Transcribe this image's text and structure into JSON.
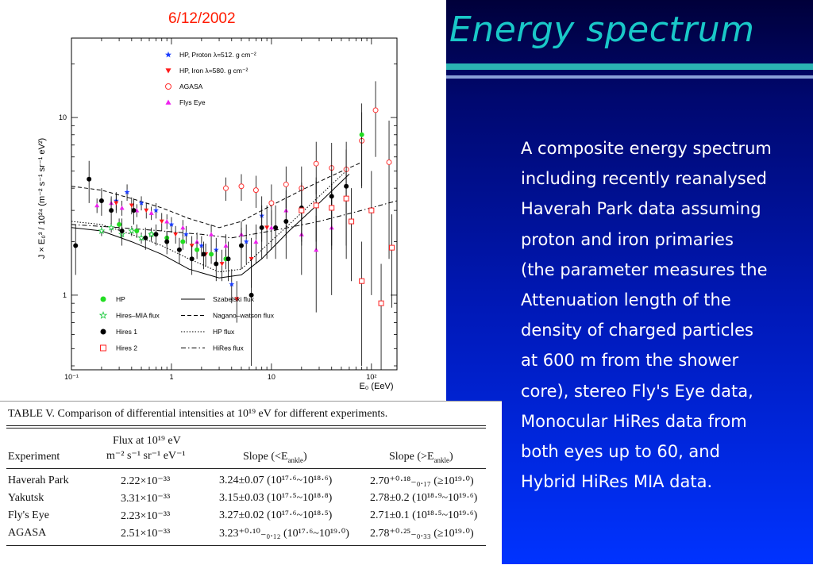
{
  "date": "6/12/2002",
  "slide_title": "Energy spectrum",
  "description_lines": [
    "A composite energy spectrum",
    "including recently reanalysed",
    "Haverah Park data assuming",
    "proton and iron primaries",
    "(the parameter measures the",
    "Attenuation length of the",
    "density of charged particles",
    "at 600 m from the shower",
    "core), stereo Fly's Eye data,",
    "Monocular HiRes data from",
    "both eyes up to 60, and",
    "Hybrid HiRes MIA data."
  ],
  "chart_data": {
    "type": "scatter",
    "xlabel": "E₀ (EeV)",
    "ylabel": "J × E₀³ / 10²⁴ (m⁻² s⁻¹ sr⁻¹ eV²)",
    "x_scale": "log",
    "y_scale": "log",
    "xlim": [
      0.1,
      180
    ],
    "ylim": [
      0.38,
      28
    ],
    "x_ticks": [
      {
        "value": 0.1,
        "label": "10⁻¹"
      },
      {
        "value": 1,
        "label": "1"
      },
      {
        "value": 10,
        "label": "10"
      },
      {
        "value": 100,
        "label": "10²"
      }
    ],
    "y_ticks": [
      {
        "value": 1,
        "label": "1"
      },
      {
        "value": 10,
        "label": "10"
      }
    ],
    "legend_top": [
      {
        "name": "HP, Proton   λ=512. g cm⁻²",
        "marker": "star",
        "color": "#1a3cff"
      },
      {
        "name": "HP, Iron   λ=580. g cm⁻²",
        "marker": "triangle-down",
        "color": "#ff1a1a"
      },
      {
        "name": "AGASA",
        "marker": "circle-open",
        "color": "#ff3333"
      },
      {
        "name": "Flys Eye",
        "marker": "triangle-up",
        "color": "#ee22ee"
      }
    ],
    "legend_bottom_markers": [
      {
        "name": "HP",
        "marker": "circle",
        "color": "#22dd22"
      },
      {
        "name": "Hires–MIA flux",
        "marker": "star-open",
        "color": "#22cc44"
      },
      {
        "name": "Hires 1",
        "marker": "circle",
        "color": "#000000"
      },
      {
        "name": "Hires 2",
        "marker": "square-open",
        "color": "#ff2222"
      }
    ],
    "legend_bottom_lines": [
      {
        "name": "Szabelski flux",
        "dash": "solid"
      },
      {
        "name": "Nagano–watson flux",
        "dash": "dashed"
      },
      {
        "name": "HP flux",
        "dash": "dotted"
      },
      {
        "name": "HiRes flux",
        "dash": "dashdot"
      }
    ],
    "series": [
      {
        "name": "HP, Proton   λ=512. g cm⁻²",
        "marker": "star",
        "color": "#1a3cff",
        "x": [
          0.28,
          0.36,
          0.5,
          0.7,
          1.0,
          1.4,
          2.0,
          2.8,
          4.0,
          5.6,
          8.0
        ],
        "y": [
          3.4,
          3.8,
          3.3,
          3.0,
          2.5,
          2.2,
          1.9,
          1.8,
          1.15,
          2.0,
          2.8
        ],
        "err": [
          0.4,
          0.4,
          0.3,
          0.3,
          0.25,
          0.25,
          0.25,
          0.3,
          0.25,
          0.5,
          0.8
        ]
      },
      {
        "name": "HP, Iron   λ=580. g cm⁻²",
        "marker": "triangle-down",
        "color": "#ff1a1a",
        "x": [
          0.28,
          0.4,
          0.56,
          0.8,
          1.1,
          1.6,
          2.2,
          3.2,
          4.5,
          6.3,
          9.0
        ],
        "y": [
          3.3,
          3.2,
          3.0,
          2.6,
          2.2,
          1.9,
          1.7,
          1.5,
          0.95,
          1.6,
          2.4
        ],
        "err": [
          0.4,
          0.35,
          0.3,
          0.3,
          0.25,
          0.25,
          0.25,
          0.3,
          0.25,
          0.5,
          0.8
        ]
      },
      {
        "name": "AGASA",
        "marker": "circle-open",
        "color": "#ff3333",
        "x": [
          3.5,
          5,
          7,
          10,
          14,
          20,
          28,
          40,
          56,
          80,
          110,
          150
        ],
        "y": [
          4.0,
          4.1,
          3.9,
          3.3,
          4.2,
          4.0,
          5.5,
          5.2,
          5.1,
          7.4,
          11.0,
          5.6
        ],
        "err": [
          0.6,
          0.7,
          0.8,
          0.9,
          1.1,
          1.3,
          1.8,
          2.0,
          2.2,
          3.3,
          5.0,
          4.0
        ]
      },
      {
        "name": "Flys Eye",
        "marker": "triangle-up",
        "color": "#ee22ee",
        "x": [
          0.18,
          0.25,
          0.32,
          0.45,
          0.63,
          0.9,
          1.3,
          1.8,
          2.5,
          3.5,
          5.0,
          7.0,
          10,
          14,
          20,
          28,
          40
        ],
        "y": [
          3.2,
          3.3,
          3.1,
          3.0,
          2.9,
          2.6,
          2.4,
          2.0,
          2.2,
          1.9,
          2.2,
          2.0,
          2.4,
          3.0,
          2.2,
          1.8,
          2.4
        ],
        "err": [
          0.3,
          0.3,
          0.3,
          0.25,
          0.25,
          0.25,
          0.25,
          0.25,
          0.3,
          0.3,
          0.4,
          0.5,
          0.6,
          0.9,
          0.9,
          1.0,
          1.4
        ]
      },
      {
        "name": "HP",
        "marker": "circle",
        "color": "#22dd22",
        "x": [
          0.3,
          0.45,
          0.63,
          0.9,
          1.3,
          1.8,
          2.5,
          3.5,
          80
        ],
        "y": [
          2.5,
          2.3,
          2.2,
          2.1,
          2.0,
          1.8,
          1.7,
          1.6,
          8.0
        ],
        "err": [
          0.2,
          0.2,
          0.2,
          0.2,
          0.2,
          0.2,
          0.2,
          0.2,
          4.0
        ]
      },
      {
        "name": "Hires–MIA flux",
        "marker": "star-open",
        "color": "#22cc44",
        "x": [
          0.2,
          0.25,
          0.32,
          0.4,
          0.5,
          0.63
        ],
        "y": [
          2.3,
          2.4,
          2.2,
          2.3,
          2.1,
          2.2
        ],
        "err": [
          0.15,
          0.15,
          0.15,
          0.15,
          0.15,
          0.15
        ]
      },
      {
        "name": "Hires 1",
        "marker": "circle",
        "color": "#000000",
        "x": [
          0.11,
          0.15,
          0.2,
          0.25,
          0.32,
          0.42,
          0.55,
          0.7,
          0.9,
          1.2,
          1.6,
          2.1,
          2.8,
          3.7,
          5,
          6.3,
          8,
          11,
          14,
          20,
          28,
          40,
          56
        ],
        "y": [
          1.9,
          4.5,
          3.4,
          3.0,
          2.3,
          3.0,
          2.1,
          2.2,
          2.0,
          1.8,
          1.6,
          1.7,
          1.5,
          1.6,
          1.9,
          1.0,
          2.4,
          2.4,
          2.6,
          3.1,
          3.2,
          3.6,
          4.1
        ],
        "err": [
          0.6,
          1.2,
          0.6,
          0.5,
          0.4,
          0.5,
          0.3,
          0.3,
          0.3,
          0.3,
          0.3,
          0.3,
          0.3,
          0.4,
          0.5,
          0.6,
          0.8,
          0.8,
          1.0,
          1.2,
          1.4,
          1.8,
          2.5
        ]
      },
      {
        "name": "Hires 2",
        "marker": "square-open",
        "color": "#ff2222",
        "x": [
          20,
          28,
          40,
          56,
          63,
          80,
          100,
          125,
          160
        ],
        "y": [
          3.0,
          3.2,
          3.1,
          3.5,
          2.6,
          1.2,
          3.0,
          0.9,
          1.85
        ],
        "err": [
          1.0,
          1.2,
          1.2,
          1.6,
          1.4,
          0.8,
          2.0,
          0.6,
          1.0
        ]
      }
    ],
    "curves": [
      {
        "name": "Szabelski flux",
        "dash": "solid",
        "x": [
          0.1,
          0.2,
          0.4,
          0.8,
          1.5,
          3,
          5,
          8,
          15,
          30,
          60
        ],
        "y": [
          2.4,
          2.3,
          2.0,
          1.7,
          1.4,
          1.25,
          1.3,
          1.6,
          2.3,
          3.3,
          4.8
        ]
      },
      {
        "name": "Nagano–watson flux",
        "dash": "dashed",
        "x": [
          0.1,
          0.2,
          0.4,
          0.8,
          1.5,
          3,
          5,
          10,
          20,
          40,
          80
        ],
        "y": [
          4.1,
          3.9,
          3.5,
          3.1,
          2.7,
          2.4,
          2.6,
          3.2,
          3.9,
          4.7,
          5.6
        ]
      },
      {
        "name": "HP flux",
        "dash": "dotted",
        "x": [
          0.1,
          0.2,
          0.4,
          0.8,
          1.5,
          3,
          5,
          8,
          15,
          30,
          60
        ],
        "y": [
          2.6,
          2.5,
          2.2,
          1.9,
          1.6,
          1.35,
          1.4,
          1.8,
          2.5,
          3.6,
          5.2
        ]
      },
      {
        "name": "HiRes flux",
        "dash": "dashdot",
        "x": [
          0.1,
          0.3,
          0.8,
          2,
          4,
          10,
          30,
          80,
          180
        ],
        "y": [
          2.5,
          2.4,
          2.3,
          2.2,
          2.1,
          2.3,
          2.6,
          3.0,
          3.4
        ]
      }
    ]
  },
  "table": {
    "caption": "TABLE V. Comparison of differential intensities at 10¹⁹ eV for different experiments.",
    "headers": {
      "experiment": "Experiment",
      "flux_line1": "Flux at 10¹⁹ eV",
      "flux_line2": "m⁻² s⁻¹ sr⁻¹ eV⁻¹",
      "slope_below": "Slope (<E",
      "slope_below_sub": "ankle",
      "slope_above": "Slope (>E",
      "slope_above_sub": "ankle"
    },
    "rows": [
      {
        "experiment": "Haverah Park",
        "flux": "2.22×10⁻³³",
        "slope_below": "3.24±0.07 (10¹⁷·⁶~10¹⁸·⁶)",
        "slope_above": "2.70⁺⁰·¹⁸₋₀.₁₇ (≥10¹⁹·⁰)"
      },
      {
        "experiment": "Yakutsk",
        "flux": "3.31×10⁻³³",
        "slope_below": "3.15±0.03 (10¹⁷·⁵~10¹⁸·⁸)",
        "slope_above": "2.78±0.2 (10¹⁸·⁹~10¹⁹·⁶)"
      },
      {
        "experiment": "Fly's Eye",
        "flux": "2.23×10⁻³³",
        "slope_below": "3.27±0.02 (10¹⁷·⁶~10¹⁸·⁵)",
        "slope_above": "2.71±0.1 (10¹⁸·⁵~10¹⁹·⁶)"
      },
      {
        "experiment": "AGASA",
        "flux": "2.51×10⁻³³",
        "slope_below": "3.23⁺⁰·¹⁰₋₀.₁₂ (10¹⁷·⁶~10¹⁹·⁰)",
        "slope_above": "2.78⁺⁰·²⁵₋₀.₃₃ (≥10¹⁹·⁰)"
      }
    ]
  }
}
